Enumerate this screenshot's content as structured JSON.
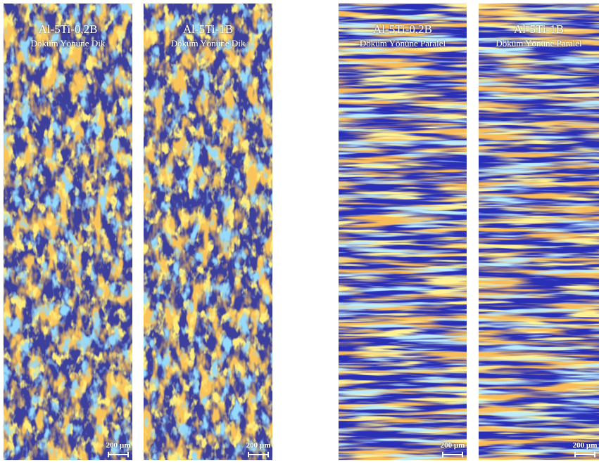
{
  "panels": [
    {
      "title": "Al-5Ti-0,2B",
      "subtitle": "Döküm Yönüne Dik",
      "scale": "200 µm"
    },
    {
      "title": "Al-5Ti-1B",
      "subtitle": "Döküm Yönüne Dik",
      "scale": "200 µm"
    },
    {
      "title": "Al-5Ti-0,2B",
      "subtitle": "Döküm Yönüne Paralel",
      "scale": "200 µm"
    },
    {
      "title": "Al-5Ti-1B",
      "subtitle": "Döküm Yönüne Paralel",
      "scale": "200 µm"
    }
  ]
}
